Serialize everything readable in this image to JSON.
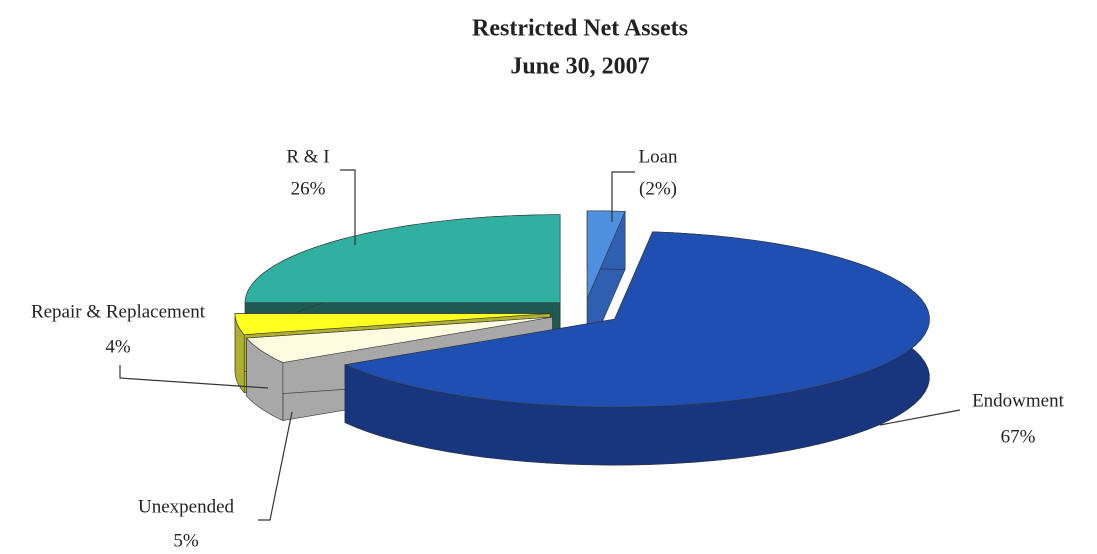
{
  "chart_data": {
    "type": "pie3d",
    "title": "Restricted Net Assets",
    "subtitle": "June 30, 2007",
    "categories": [
      "Loan",
      "Endowment",
      "Unexpended",
      "Repair & Replacement",
      "R & I"
    ],
    "values": [
      -2,
      67,
      5,
      4,
      26
    ],
    "value_labels": [
      "(2%)",
      "67%",
      "5%",
      "4%",
      "26%"
    ],
    "colors": [
      "#4f8fe0",
      "#1f4fb0",
      "#fffbe0",
      "#ffff20",
      "#30b0a0"
    ],
    "side_colors": [
      "#2f5fb0",
      "#17367e",
      "#a8a8a8",
      "#b0b030",
      "#1f5a52"
    ]
  }
}
